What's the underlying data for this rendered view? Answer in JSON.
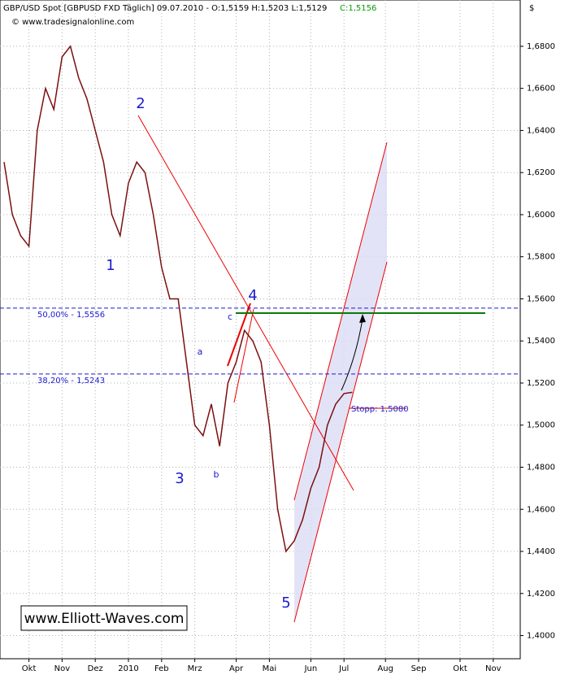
{
  "chart_data": {
    "type": "line",
    "header": "GBP/USD Spot [GBPUSD FXD  Täglich] 09.07.2010 - O:1,5159 H:1,5203 L:1,5129",
    "close_label": "C:1,5156",
    "source": "© www.tradesignalonline.com",
    "currency": "$",
    "watermark": "www.Elliott-Waves.com",
    "wave_labels": [
      "1",
      "2",
      "3",
      "4",
      "5",
      "a",
      "b",
      "c"
    ],
    "categories": [
      null,
      null,
      null,
      "Okt",
      null,
      null,
      null,
      "Nov",
      null,
      null,
      null,
      "Dez",
      null,
      null,
      null,
      "2010",
      null,
      null,
      null,
      "Feb",
      null,
      null,
      null,
      "Mrz",
      null,
      null,
      null,
      null,
      "Apr",
      null,
      null,
      null,
      "Mai",
      null,
      null,
      null,
      null,
      "Jun",
      null,
      null,
      null,
      "Jul",
      null,
      null,
      null,
      null,
      "Aug",
      null,
      null,
      null,
      "Sep",
      null,
      null,
      null,
      null,
      "Okt",
      null,
      null,
      null,
      "Nov",
      null,
      null
    ],
    "series": [
      {
        "name": "GBP/USD",
        "color": "#7a1010",
        "values": [
          1.625,
          1.6,
          1.59,
          1.585,
          1.64,
          1.66,
          1.65,
          1.675,
          1.68,
          1.665,
          1.655,
          1.64,
          1.625,
          1.6,
          1.59,
          1.615,
          1.625,
          1.62,
          1.6,
          1.575,
          1.56,
          1.56,
          1.53,
          1.5,
          1.495,
          1.51,
          1.49,
          1.52,
          1.53,
          1.545,
          1.54,
          1.53,
          1.5,
          1.46,
          1.44,
          1.445,
          1.455,
          1.47,
          1.48,
          1.5,
          1.51,
          1.515,
          1.5156,
          null,
          null,
          null,
          null,
          null,
          null,
          null,
          null,
          null,
          null,
          null,
          null,
          null,
          null,
          null,
          null,
          null,
          null,
          null
        ]
      }
    ],
    "levels": [
      {
        "value": 1.5556,
        "label": "50,00% - 1,5556"
      },
      {
        "value": 1.5243,
        "label": "38,20% - 1,5243"
      },
      {
        "value": 1.508,
        "label": "Stopp: 1,5080"
      }
    ],
    "ylim": [
      1.389,
      1.702
    ],
    "yticks": [
      {
        "value": 1.4,
        "label": "1,4000"
      },
      {
        "value": 1.42,
        "label": "1,4200"
      },
      {
        "value": 1.44,
        "label": "1,4400"
      },
      {
        "value": 1.46,
        "label": "1,4600"
      },
      {
        "value": 1.48,
        "label": "1,4800"
      },
      {
        "value": 1.5,
        "label": "1,5000"
      },
      {
        "value": 1.52,
        "label": "1,5200"
      },
      {
        "value": 1.54,
        "label": "1,5400"
      },
      {
        "value": 1.56,
        "label": "1,5600"
      },
      {
        "value": 1.58,
        "label": "1,5800"
      },
      {
        "value": 1.6,
        "label": "1,6000"
      },
      {
        "value": 1.62,
        "label": "1,6200"
      },
      {
        "value": 1.64,
        "label": "1,6400"
      },
      {
        "value": 1.66,
        "label": "1,6600"
      },
      {
        "value": 1.68,
        "label": "1,6800"
      }
    ],
    "grid": true
  }
}
